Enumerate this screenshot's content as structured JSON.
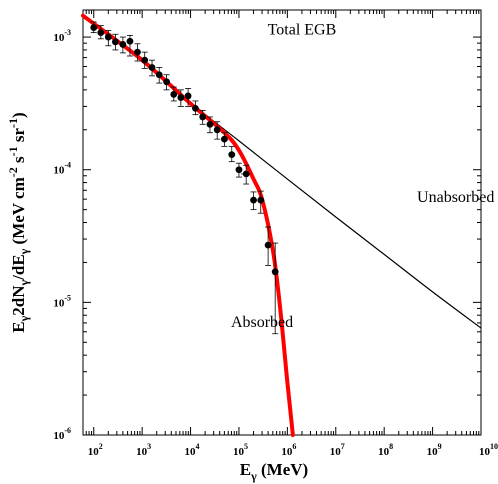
{
  "chart_data": {
    "type": "line",
    "title": "",
    "xlabel": {
      "main": "E",
      "sub": "γ",
      "rest": " (MeV)"
    },
    "ylabel": {
      "parts": [
        {
          "t": "E",
          "s": "n"
        },
        {
          "t": "γ",
          "s": "sub"
        },
        {
          "t": "2dN",
          "s": "n"
        },
        {
          "t": "γ",
          "s": "sub"
        },
        {
          "t": "/dE",
          "s": "n"
        },
        {
          "t": "γ",
          "s": "sub"
        },
        {
          "t": " (MeV cm",
          "s": "n"
        },
        {
          "t": "-2",
          "s": "sup"
        },
        {
          "t": " s",
          "s": "n"
        },
        {
          "t": "-1",
          "s": "sup"
        },
        {
          "t": " sr",
          "s": "n"
        },
        {
          "t": "-1",
          "s": "sup"
        },
        {
          "t": ")",
          "s": "n"
        }
      ]
    },
    "x_scale": "log",
    "y_scale": "log",
    "xlim": [
      60,
      10000000000
    ],
    "ylim": [
      1e-06,
      0.0016
    ],
    "x_ticks": [
      {
        "value": 100,
        "base": "10",
        "exp": "2"
      },
      {
        "value": 1000,
        "base": "10",
        "exp": "3"
      },
      {
        "value": 10000,
        "base": "10",
        "exp": "4"
      },
      {
        "value": 100000,
        "base": "10",
        "exp": "5"
      },
      {
        "value": 1000000,
        "base": "10",
        "exp": "6"
      },
      {
        "value": 10000000,
        "base": "10",
        "exp": "7"
      },
      {
        "value": 100000000,
        "base": "10",
        "exp": "8"
      },
      {
        "value": 1000000000,
        "base": "10",
        "exp": "9"
      },
      {
        "value": 10000000000,
        "base": "10",
        "exp": "10"
      }
    ],
    "y_ticks": [
      {
        "value": 0.001,
        "base": "10",
        "exp": "-3"
      },
      {
        "value": 0.0001,
        "base": "10",
        "exp": "-4"
      },
      {
        "value": 1e-05,
        "base": "10",
        "exp": "-5"
      },
      {
        "value": 1e-06,
        "base": "10",
        "exp": "-6"
      }
    ],
    "annotations": [
      {
        "text": "Total EGB",
        "x": 2000000,
        "y": 0.00105
      },
      {
        "text": "Unabsorbed",
        "x": 3000000000,
        "y": 5.7e-05
      },
      {
        "text": "Absorbed",
        "x": 300000,
        "y": 6.5e-06
      }
    ],
    "series": [
      {
        "label": "Unabsorbed",
        "color": "#000000",
        "x": [
          60,
          1000,
          10000,
          100000,
          1000000,
          10000000,
          100000000,
          1000000000,
          10000000000
        ],
        "y": [
          0.00145,
          0.00067,
          0.00032,
          0.000165,
          8.5e-05,
          4.4e-05,
          2.3e-05,
          1.2e-05,
          6.4e-06
        ]
      },
      {
        "label": "Absorbed",
        "color": "#ff0000",
        "x": [
          60,
          1000,
          10000,
          50000,
          100000,
          200000,
          300000,
          500000,
          700000,
          1000000,
          1300000
        ],
        "y": [
          0.00145,
          0.00067,
          0.000315,
          0.00019,
          0.00014,
          8.5e-05,
          6e-05,
          2.5e-05,
          9.5e-06,
          2.5e-06,
          1e-06
        ]
      }
    ],
    "data_points": {
      "color": "#000000",
      "x": [
        100,
        140,
        200,
        280,
        400,
        560,
        800,
        1130,
        1600,
        2250,
        3200,
        4500,
        6300,
        8900,
        12600,
        17800,
        25200,
        35500,
        50000,
        71000,
        100000,
        141000,
        200000,
        282000,
        400000,
        560000
      ],
      "y": [
        0.00118,
        0.00108,
        0.001,
        0.00092,
        0.00088,
        0.00093,
        0.00077,
        0.00067,
        0.00059,
        0.00052,
        0.00046,
        0.00037,
        0.00035,
        0.00036,
        0.00029,
        0.00025,
        0.00022,
        0.0002,
        0.00017,
        0.00013,
        0.0001,
        9.3e-05,
        5.9e-05,
        5.9e-05,
        2.7e-05,
        1.7e-05
      ],
      "err_low": [
        0.00108,
        0.00097,
        0.00086,
        0.0008,
        0.00076,
        0.00072,
        0.00066,
        0.00058,
        0.00051,
        0.00045,
        0.0004,
        0.00033,
        0.0003,
        0.0003,
        0.00026,
        0.00022,
        0.00019,
        0.00017,
        0.00015,
        0.000115,
        8.8e-05,
        7.8e-05,
        5e-05,
        4.7e-05,
        1.9e-05,
        5.8e-06
      ],
      "err_high": [
        0.0013,
        0.00122,
        0.00112,
        0.00105,
        0.001,
        0.00103,
        0.00089,
        0.00077,
        0.00067,
        0.00059,
        0.00052,
        0.00042,
        0.0004,
        0.00041,
        0.00033,
        0.00028,
        0.00025,
        0.00023,
        0.00019,
        0.00015,
        0.000112,
        0.000108,
        6.8e-05,
        6.9e-05,
        3.7e-05,
        2.8e-05
      ],
      "xerr": [
        {
          "i": 21,
          "low": 110000,
          "high": 170000
        },
        {
          "i": 22,
          "low": 180000,
          "high": 225000
        }
      ]
    }
  }
}
